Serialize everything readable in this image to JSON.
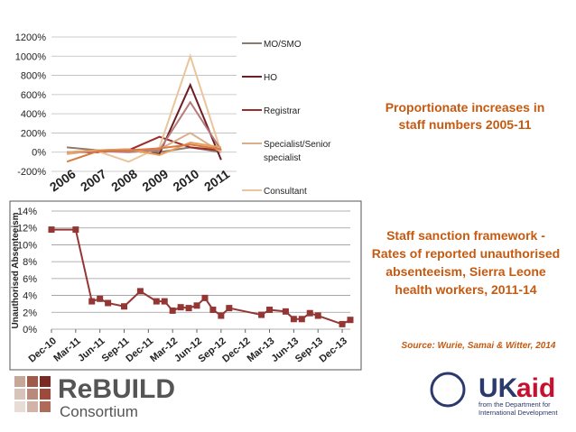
{
  "chart_data": [
    {
      "type": "line",
      "title": "Proportionate increases in staff numbers 2005-11",
      "categories": [
        "2006",
        "2007",
        "2008",
        "2009",
        "2010",
        "2011"
      ],
      "ylim": [
        -200,
        1200
      ],
      "yticks": [
        {
          "value": -200,
          "label": "-200%"
        },
        {
          "value": 0,
          "label": "0%"
        },
        {
          "value": 200,
          "label": "200%"
        },
        {
          "value": 400,
          "label": "400%"
        },
        {
          "value": 600,
          "label": "600%"
        },
        {
          "value": 800,
          "label": "800%"
        },
        {
          "value": 1000,
          "label": "1000%"
        },
        {
          "value": 1200,
          "label": "1200%"
        }
      ],
      "grid": true,
      "series": [
        {
          "name": "MO/SMO",
          "color": "#8c7b6b",
          "values": [
            50,
            20,
            30,
            0,
            50,
            0
          ]
        },
        {
          "name": "HO",
          "color": "#6b1f24",
          "values": [
            0,
            10,
            20,
            -20,
            700,
            -80
          ]
        },
        {
          "name": "Registrar",
          "color": "#9c2b2b",
          "values": [
            0,
            0,
            20,
            160,
            50,
            20
          ]
        },
        {
          "name": "Specialist/Senior specialist",
          "color": "#d8b08c",
          "values": [
            -20,
            20,
            10,
            30,
            200,
            0
          ]
        },
        {
          "name": "Consultant",
          "color": "#e9c59b",
          "values": [
            0,
            10,
            -100,
            50,
            1000,
            0
          ]
        },
        {
          "color": "#b77a7a",
          "values": [
            0,
            10,
            0,
            20,
            520,
            20
          ]
        },
        {
          "color": "#e8a060",
          "values": [
            0,
            20,
            30,
            -30,
            100,
            50
          ]
        },
        {
          "color": "#d97a40",
          "values": [
            -100,
            10,
            20,
            40,
            80,
            30
          ]
        }
      ]
    },
    {
      "type": "line",
      "title": "Staff sanction framework - Rates of reported unauthorised absenteeism, Sierra Leone health workers, 2011-14",
      "source": "Source: Wurie, Samai & Witter, 2014",
      "y_label": "Unauthorised Absenteeism",
      "x": [
        "2010-12",
        "2011-03",
        "2011-05",
        "2011-06",
        "2011-07",
        "2011-09",
        "2011-11",
        "2012-01",
        "2012-02",
        "2012-03",
        "2012-04",
        "2012-05",
        "2012-06",
        "2012-07",
        "2012-08",
        "2012-09",
        "2012-10",
        "2013-02",
        "2013-03",
        "2013-05",
        "2013-06",
        "2013-07",
        "2013-08",
        "2013-09",
        "2013-12",
        "2014-01"
      ],
      "values": [
        11.8,
        11.8,
        3.3,
        3.6,
        3.1,
        2.7,
        4.5,
        3.3,
        3.3,
        2.2,
        2.6,
        2.5,
        2.8,
        3.7,
        2.3,
        1.6,
        2.5,
        1.7,
        2.3,
        2.1,
        1.2,
        1.2,
        1.9,
        1.6,
        0.6,
        1.1
      ],
      "color": "#943634",
      "xlim": [
        "2010-12",
        "2014-01"
      ],
      "xticks": [
        {
          "value": "2010-12",
          "label": "Dec-10"
        },
        {
          "value": "2011-03",
          "label": "Mar-11"
        },
        {
          "value": "2011-06",
          "label": "Jun-11"
        },
        {
          "value": "2011-09",
          "label": "Sep-11"
        },
        {
          "value": "2011-12",
          "label": "Dec-11"
        },
        {
          "value": "2012-03",
          "label": "Mar-12"
        },
        {
          "value": "2012-06",
          "label": "Jun-12"
        },
        {
          "value": "2012-09",
          "label": "Sep-12"
        },
        {
          "value": "2012-12",
          "label": "Dec-12"
        },
        {
          "value": "2013-03",
          "label": "Mar-13"
        },
        {
          "value": "2013-06",
          "label": "Jun-13"
        },
        {
          "value": "2013-09",
          "label": "Sep-13"
        },
        {
          "value": "2013-12",
          "label": "Dec-13"
        }
      ],
      "ylim": [
        0,
        14
      ],
      "yticks": [
        {
          "value": 0,
          "label": "0%"
        },
        {
          "value": 2,
          "label": "2%"
        },
        {
          "value": 4,
          "label": "4%"
        },
        {
          "value": 6,
          "label": "6%"
        },
        {
          "value": 8,
          "label": "8%"
        },
        {
          "value": 10,
          "label": "10%"
        },
        {
          "value": 12,
          "label": "12%"
        },
        {
          "value": 14,
          "label": "14%"
        }
      ],
      "grid": true
    }
  ],
  "logos": {
    "rebuild_top": "ReBUILD",
    "rebuild_bottom": "Consortium",
    "ukaid_uk": "UK",
    "ukaid_aid": "aid",
    "ukaid_caption": "from the Department for International Development"
  }
}
